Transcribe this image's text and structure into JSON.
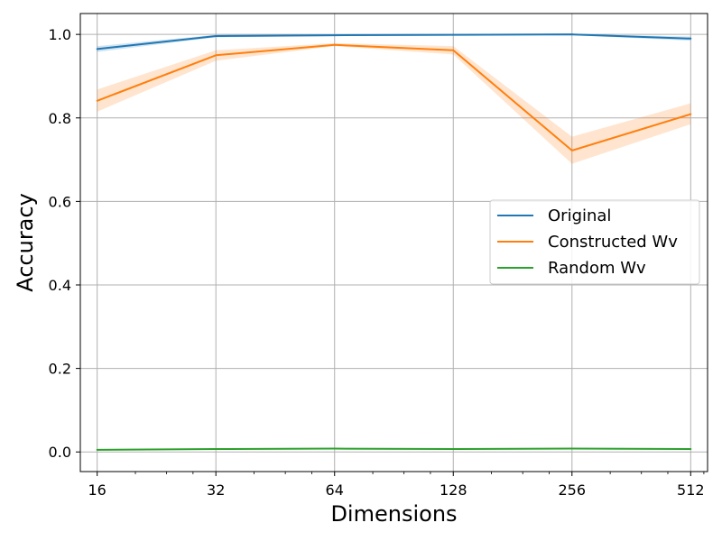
{
  "chart_data": {
    "type": "line",
    "xlabel": "Dimensions",
    "ylabel": "Accuracy",
    "x": [
      16,
      32,
      64,
      128,
      256,
      512
    ],
    "x_tick_labels": [
      "16",
      "32",
      "64",
      "128",
      "256",
      "512"
    ],
    "x_scale": "log2",
    "xlim": [
      14.5,
      565
    ],
    "ylim": [
      -0.047,
      1.05
    ],
    "y_ticks": [
      0.0,
      0.2,
      0.4,
      0.6,
      0.8,
      1.0
    ],
    "y_tick_labels": [
      "0.0",
      "0.2",
      "0.4",
      "0.6",
      "0.8",
      "1.0"
    ],
    "grid": true,
    "legend_position": "center-right",
    "series": [
      {
        "name": "Original",
        "color": "#1f77b4",
        "values": [
          0.965,
          0.996,
          0.998,
          0.999,
          1.0,
          0.99
        ],
        "lower": [
          0.958,
          0.993,
          0.996,
          0.997,
          0.998,
          0.985
        ],
        "upper": [
          0.972,
          0.999,
          1.0,
          1.0,
          1.0,
          0.995
        ]
      },
      {
        "name": "Constructed Wv",
        "color": "#ff7f0e",
        "values": [
          0.841,
          0.95,
          0.975,
          0.962,
          0.722,
          0.809
        ],
        "lower": [
          0.815,
          0.937,
          0.972,
          0.952,
          0.69,
          0.785
        ],
        "upper": [
          0.868,
          0.962,
          0.979,
          0.972,
          0.755,
          0.835
        ]
      },
      {
        "name": "Random Wv",
        "color": "#2ca02c",
        "values": [
          0.005,
          0.007,
          0.008,
          0.007,
          0.008,
          0.007
        ],
        "lower": [
          0.004,
          0.006,
          0.007,
          0.006,
          0.007,
          0.006
        ],
        "upper": [
          0.006,
          0.008,
          0.009,
          0.008,
          0.009,
          0.008
        ]
      }
    ]
  }
}
